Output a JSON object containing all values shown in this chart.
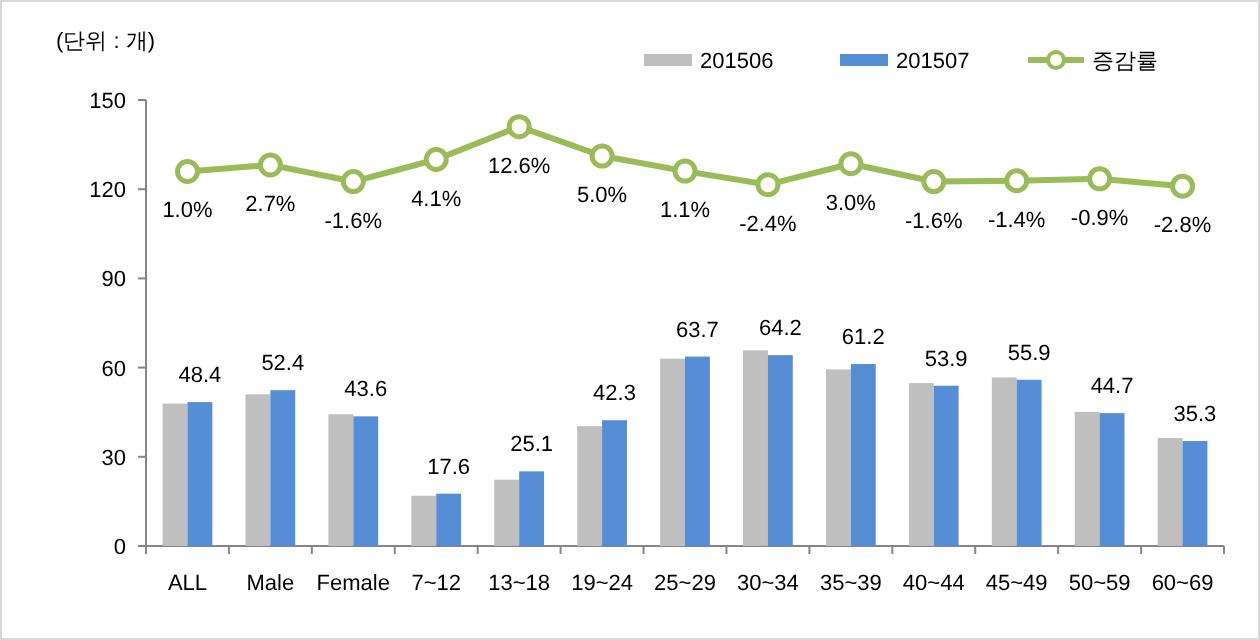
{
  "chart_data": {
    "type": "bar",
    "ylabel": "(단위 : 개)",
    "categories": [
      "ALL",
      "Male",
      "Female",
      "7~12",
      "13~18",
      "19~24",
      "25~29",
      "30~34",
      "35~39",
      "40~44",
      "45~49",
      "50~59",
      "60~69"
    ],
    "series": [
      {
        "name": "201506",
        "color": "#bfbfbf",
        "values": [
          47.9,
          51.0,
          44.3,
          16.9,
          22.3,
          40.3,
          63.0,
          65.8,
          59.4,
          54.8,
          56.7,
          45.1,
          36.3
        ]
      },
      {
        "name": "201507",
        "color": "#558ed5",
        "values": [
          48.4,
          52.4,
          43.6,
          17.6,
          25.1,
          42.3,
          63.7,
          64.2,
          61.2,
          53.9,
          55.9,
          44.7,
          35.3
        ],
        "value_labels": [
          "48.4",
          "52.4",
          "43.6",
          "17.6",
          "25.1",
          "42.3",
          "63.7",
          "64.2",
          "61.2",
          "53.9",
          "55.9",
          "44.7",
          "35.3"
        ]
      },
      {
        "name": "증감률",
        "type": "line",
        "axis": "y2",
        "color": "#9bbb59",
        "marker": "circle",
        "values": [
          1.0,
          2.7,
          -1.6,
          4.1,
          12.6,
          5.0,
          1.1,
          -2.4,
          3.0,
          -1.6,
          -1.4,
          -0.9,
          -2.8
        ],
        "value_labels": [
          "1.0%",
          "2.7%",
          "-1.6%",
          "4.1%",
          "12.6%",
          "5.0%",
          "1.1%",
          "-2.4%",
          "3.0%",
          "-1.6%",
          "-1.4%",
          "-0.9%",
          "-2.8%"
        ]
      }
    ],
    "ylim": [
      0,
      150
    ],
    "yticks": [
      0,
      30,
      60,
      90,
      120,
      150
    ],
    "y2lim": [
      -95.9,
      19.5
    ],
    "legend": "top right",
    "grid": false
  }
}
